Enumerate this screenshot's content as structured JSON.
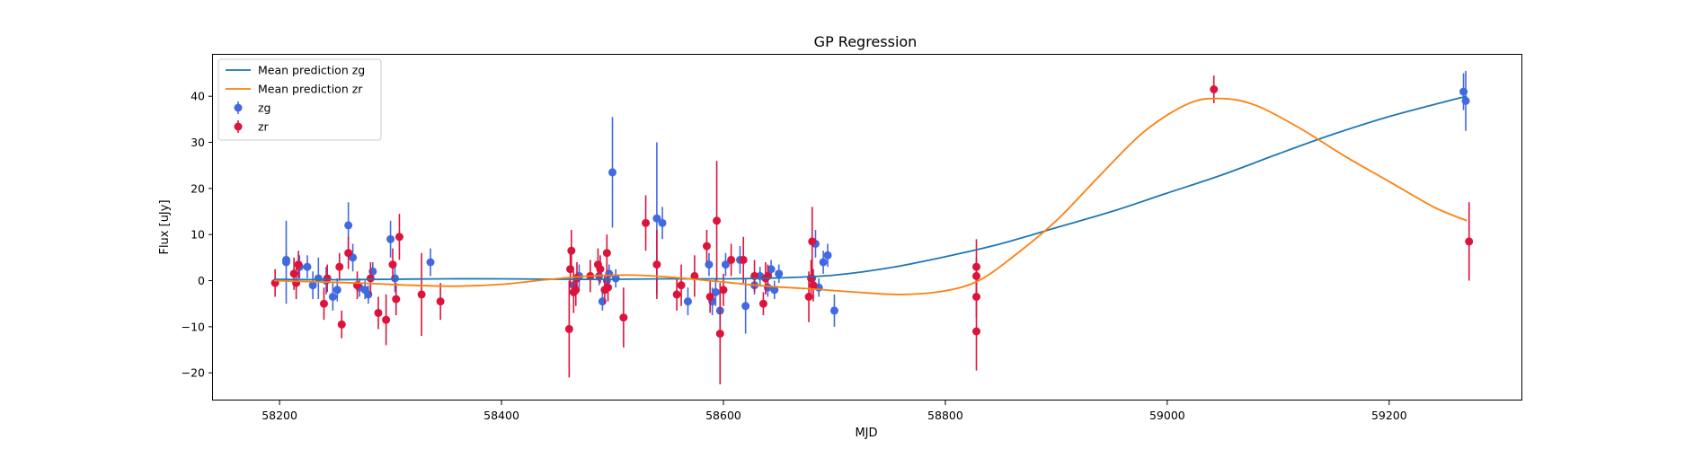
{
  "chart_data": {
    "type": "scatter",
    "title": "GP Regression",
    "xlabel": "MJD",
    "ylabel": "Flux [uJy]",
    "xlim": [
      58140,
      59320
    ],
    "ylim": [
      -26,
      49
    ],
    "x_ticks": [
      58200,
      58400,
      58600,
      58800,
      59000,
      59200
    ],
    "y_ticks": [
      -20,
      -10,
      0,
      10,
      20,
      30,
      40
    ],
    "grid": false,
    "legend_placement": "upper-left",
    "legend": [
      {
        "label": "Mean prediction zg",
        "kind": "line",
        "color": "#1f77b4"
      },
      {
        "label": "Mean prediction zr",
        "kind": "line",
        "color": "#ff7f0e"
      },
      {
        "label": "zg",
        "kind": "errorbar",
        "color": "#4169e1"
      },
      {
        "label": "zr",
        "kind": "errorbar",
        "color": "#dc143c"
      }
    ],
    "lines": [
      {
        "name": "Mean prediction zg",
        "color": "#1f77b4",
        "x": [
          58195,
          58250,
          58300,
          58350,
          58400,
          58450,
          58500,
          58550,
          58600,
          58650,
          58700,
          58750,
          58800,
          58850,
          58900,
          58950,
          59000,
          59050,
          59100,
          59150,
          59200,
          59250,
          59270
        ],
        "y": [
          0.3,
          0.2,
          0.3,
          0.4,
          0.4,
          0.3,
          0.3,
          0.4,
          0.4,
          0.6,
          1.2,
          2.8,
          5.2,
          8.0,
          11.5,
          15.0,
          19.0,
          23.0,
          27.5,
          31.8,
          35.6,
          38.8,
          40.0
        ]
      },
      {
        "name": "Mean prediction zr",
        "color": "#ff7f0e",
        "x": [
          58195,
          58240,
          58280,
          58320,
          58360,
          58400,
          58440,
          58480,
          58520,
          58560,
          58600,
          58640,
          58680,
          58720,
          58760,
          58800,
          58830,
          58860,
          58900,
          58940,
          58980,
          59020,
          59050,
          59080,
          59120,
          59160,
          59200,
          59240,
          59270
        ],
        "y": [
          0.0,
          -0.3,
          -0.6,
          -1.0,
          -1.2,
          -0.8,
          0.2,
          1.0,
          1.2,
          0.6,
          -0.3,
          -1.2,
          -1.8,
          -2.5,
          -3.0,
          -2.2,
          0.0,
          5.0,
          13.0,
          23.0,
          32.5,
          38.5,
          39.5,
          38.0,
          33.0,
          27.0,
          21.5,
          16.0,
          13.0
        ]
      }
    ],
    "series": [
      {
        "name": "zg",
        "color": "#4169e1",
        "points": [
          {
            "x": 58206,
            "y": 4.0,
            "err": 9.0
          },
          {
            "x": 58206,
            "y": 4.5,
            "err": 1.5
          },
          {
            "x": 58218,
            "y": 3.0,
            "err": 2.5
          },
          {
            "x": 58225,
            "y": 3.0,
            "err": 2.5
          },
          {
            "x": 58230,
            "y": -1.0,
            "err": 3.0
          },
          {
            "x": 58235,
            "y": 0.5,
            "err": 4.5
          },
          {
            "x": 58242,
            "y": 0.0,
            "err": 3.0
          },
          {
            "x": 58248,
            "y": -3.5,
            "err": 3.0
          },
          {
            "x": 58252,
            "y": -2.0,
            "err": 2.5
          },
          {
            "x": 58262,
            "y": 12.0,
            "err": 5.0
          },
          {
            "x": 58266,
            "y": 5.0,
            "err": 3.0
          },
          {
            "x": 58272,
            "y": -1.5,
            "err": 2.0
          },
          {
            "x": 58277,
            "y": -2.0,
            "err": 2.0
          },
          {
            "x": 58280,
            "y": -3.0,
            "err": 2.0
          },
          {
            "x": 58284,
            "y": 2.0,
            "err": 2.0
          },
          {
            "x": 58300,
            "y": 9.0,
            "err": 4.0
          },
          {
            "x": 58304,
            "y": 0.5,
            "err": 3.0
          },
          {
            "x": 58336,
            "y": 4.0,
            "err": 3.0
          },
          {
            "x": 58465,
            "y": -1.0,
            "err": 2.5
          },
          {
            "x": 58470,
            "y": 1.0,
            "err": 2.5
          },
          {
            "x": 58488,
            "y": 1.0,
            "err": 2.0
          },
          {
            "x": 58491,
            "y": -4.5,
            "err": 2.0
          },
          {
            "x": 58495,
            "y": 0.0,
            "err": 2.5
          },
          {
            "x": 58497,
            "y": 1.5,
            "err": 2.0
          },
          {
            "x": 58500,
            "y": 23.5,
            "err": 12.0
          },
          {
            "x": 58503,
            "y": 0.5,
            "err": 2.0
          },
          {
            "x": 58540,
            "y": 13.5,
            "err": 16.5
          },
          {
            "x": 58545,
            "y": 12.5,
            "err": 3.5
          },
          {
            "x": 58568,
            "y": -4.5,
            "err": 3.0
          },
          {
            "x": 58587,
            "y": 3.5,
            "err": 2.5
          },
          {
            "x": 58590,
            "y": -4.5,
            "err": 3.0
          },
          {
            "x": 58593,
            "y": -2.5,
            "err": 3.0
          },
          {
            "x": 58597,
            "y": -6.5,
            "err": 4.5
          },
          {
            "x": 58602,
            "y": 3.5,
            "err": 2.5
          },
          {
            "x": 58615,
            "y": 4.5,
            "err": 3.0
          },
          {
            "x": 58620,
            "y": -5.5,
            "err": 6.0
          },
          {
            "x": 58628,
            "y": -1.0,
            "err": 2.0
          },
          {
            "x": 58633,
            "y": 1.0,
            "err": 2.0
          },
          {
            "x": 58640,
            "y": -1.5,
            "err": 2.0
          },
          {
            "x": 58643,
            "y": 2.5,
            "err": 2.0
          },
          {
            "x": 58646,
            "y": -2.0,
            "err": 2.0
          },
          {
            "x": 58650,
            "y": 1.5,
            "err": 2.0
          },
          {
            "x": 58680,
            "y": 0.5,
            "err": 2.0
          },
          {
            "x": 58683,
            "y": 8.0,
            "err": 3.0
          },
          {
            "x": 58686,
            "y": -1.5,
            "err": 2.0
          },
          {
            "x": 58690,
            "y": 4.0,
            "err": 2.5
          },
          {
            "x": 58694,
            "y": 5.5,
            "err": 2.5
          },
          {
            "x": 58700,
            "y": -6.5,
            "err": 3.5
          },
          {
            "x": 59267,
            "y": 41.0,
            "err": 4.0
          },
          {
            "x": 59269,
            "y": 39.0,
            "err": 6.5
          }
        ]
      },
      {
        "name": "zr",
        "color": "#dc143c",
        "points": [
          {
            "x": 58196,
            "y": -0.5,
            "err": 3.0
          },
          {
            "x": 58213,
            "y": 1.5,
            "err": 3.5
          },
          {
            "x": 58215,
            "y": -0.5,
            "err": 3.5
          },
          {
            "x": 58217,
            "y": 3.5,
            "err": 3.0
          },
          {
            "x": 58240,
            "y": -5.0,
            "err": 3.5
          },
          {
            "x": 58243,
            "y": 0.5,
            "err": 3.0
          },
          {
            "x": 58254,
            "y": 3.0,
            "err": 3.0
          },
          {
            "x": 58256,
            "y": -9.5,
            "err": 3.0
          },
          {
            "x": 58262,
            "y": 6.0,
            "err": 3.5
          },
          {
            "x": 58270,
            "y": -1.0,
            "err": 3.0
          },
          {
            "x": 58282,
            "y": 0.5,
            "err": 3.5
          },
          {
            "x": 58289,
            "y": -7.0,
            "err": 3.5
          },
          {
            "x": 58296,
            "y": -8.5,
            "err": 5.5
          },
          {
            "x": 58302,
            "y": 3.5,
            "err": 3.5
          },
          {
            "x": 58305,
            "y": -4.0,
            "err": 3.5
          },
          {
            "x": 58308,
            "y": 9.5,
            "err": 5.0
          },
          {
            "x": 58328,
            "y": -3.0,
            "err": 9.0
          },
          {
            "x": 58345,
            "y": -4.5,
            "err": 4.0
          },
          {
            "x": 58461,
            "y": -10.5,
            "err": 10.5
          },
          {
            "x": 58462,
            "y": 2.5,
            "err": 4.0
          },
          {
            "x": 58463,
            "y": 6.5,
            "err": 4.5
          },
          {
            "x": 58465,
            "y": -2.5,
            "err": 4.5
          },
          {
            "x": 58467,
            "y": -2.0,
            "err": 3.5
          },
          {
            "x": 58468,
            "y": 0.5,
            "err": 3.5
          },
          {
            "x": 58480,
            "y": 1.0,
            "err": 3.5
          },
          {
            "x": 58487,
            "y": 3.5,
            "err": 3.5
          },
          {
            "x": 58489,
            "y": 2.5,
            "err": 3.0
          },
          {
            "x": 58493,
            "y": -2.0,
            "err": 3.0
          },
          {
            "x": 58495,
            "y": 6.0,
            "err": 4.0
          },
          {
            "x": 58496,
            "y": -1.5,
            "err": 3.0
          },
          {
            "x": 58510,
            "y": -8.0,
            "err": 6.5
          },
          {
            "x": 58530,
            "y": 12.5,
            "err": 6.0
          },
          {
            "x": 58540,
            "y": 3.5,
            "err": 7.5
          },
          {
            "x": 58558,
            "y": -3.0,
            "err": 3.5
          },
          {
            "x": 58562,
            "y": -1.0,
            "err": 4.5
          },
          {
            "x": 58574,
            "y": 1.0,
            "err": 4.5
          },
          {
            "x": 58585,
            "y": 7.5,
            "err": 3.5
          },
          {
            "x": 58588,
            "y": -3.5,
            "err": 3.5
          },
          {
            "x": 58594,
            "y": 13.0,
            "err": 13.0
          },
          {
            "x": 58597,
            "y": -11.5,
            "err": 11.0
          },
          {
            "x": 58600,
            "y": -2.0,
            "err": 3.5
          },
          {
            "x": 58607,
            "y": 4.5,
            "err": 3.5
          },
          {
            "x": 58618,
            "y": 4.5,
            "err": 5.0
          },
          {
            "x": 58628,
            "y": 1.0,
            "err": 3.5
          },
          {
            "x": 58636,
            "y": -5.0,
            "err": 2.5
          },
          {
            "x": 58638,
            "y": 0.5,
            "err": 3.5
          },
          {
            "x": 58640,
            "y": 1.0,
            "err": 2.5
          },
          {
            "x": 58677,
            "y": -3.5,
            "err": 5.5
          },
          {
            "x": 58679,
            "y": 0.5,
            "err": 4.0
          },
          {
            "x": 58680,
            "y": 8.5,
            "err": 7.5
          },
          {
            "x": 58681,
            "y": -1.0,
            "err": 3.5
          },
          {
            "x": 58828,
            "y": 3.0,
            "err": 6.0
          },
          {
            "x": 58828,
            "y": 1.0,
            "err": 4.0
          },
          {
            "x": 58828,
            "y": -3.5,
            "err": 4.5
          },
          {
            "x": 58828,
            "y": -11.0,
            "err": 8.5
          },
          {
            "x": 59042,
            "y": 41.5,
            "err": 3.0
          },
          {
            "x": 59272,
            "y": 8.5,
            "err": 8.5
          }
        ]
      }
    ]
  }
}
